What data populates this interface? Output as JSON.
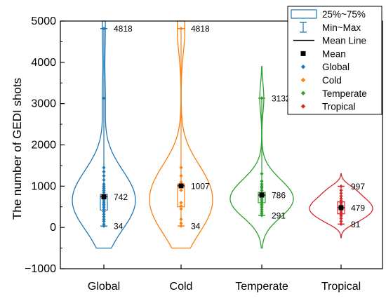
{
  "chart_data": {
    "type": "violin",
    "ylabel": "The number of GEDI shots",
    "xlabel": "",
    "ylim": [
      -1000,
      5000
    ],
    "yticks": [
      -1000,
      0,
      1000,
      2000,
      3000,
      4000,
      5000
    ],
    "categories": [
      "Global",
      "Cold",
      "Temperate",
      "Tropical"
    ],
    "series": [
      {
        "name": "Global",
        "color": "#1f77b4",
        "max": 4818,
        "mean": 742,
        "min": 34,
        "q1": 420,
        "q3": 800,
        "kde_range": [
          -500,
          5000
        ],
        "points": [
          34,
          80,
          150,
          200,
          260,
          320,
          380,
          430,
          480,
          520,
          560,
          600,
          640,
          680,
          720,
          760,
          800,
          850,
          900,
          950,
          1000,
          1050,
          1150,
          1250,
          1350,
          1450,
          3130,
          4818
        ]
      },
      {
        "name": "Cold",
        "color": "#ff7f0e",
        "max": 4818,
        "mean": 1007,
        "min": 34,
        "q1": 500,
        "q3": 1050,
        "kde_range": [
          -500,
          5000
        ],
        "points": [
          34,
          100,
          200,
          450,
          520,
          600,
          900,
          1000,
          1100,
          1250,
          1450,
          4818
        ]
      },
      {
        "name": "Temperate",
        "color": "#2ca02c",
        "max": 3132,
        "mean": 786,
        "min": 291,
        "q1": 600,
        "q3": 850,
        "kde_range": [
          -500,
          3900
        ],
        "points": [
          291,
          330,
          380,
          430,
          480,
          520,
          560,
          600,
          640,
          680,
          720,
          760,
          800,
          840,
          900,
          960,
          1000,
          1050,
          1120,
          1300,
          3132
        ]
      },
      {
        "name": "Tropical",
        "color": "#d62728",
        "max": 997,
        "mean": 479,
        "min": 81,
        "q1": 330,
        "q3": 620,
        "kde_range": [
          -250,
          1300
        ],
        "points": [
          81,
          150,
          220,
          280,
          320,
          360,
          400,
          440,
          480,
          520,
          560,
          600,
          650,
          700,
          760,
          830,
          900,
          997
        ]
      }
    ],
    "annotations": [
      {
        "category": "Global",
        "stat": "max",
        "value": 4818,
        "text": "4818"
      },
      {
        "category": "Global",
        "stat": "mean",
        "value": 742,
        "text": "742"
      },
      {
        "category": "Global",
        "stat": "min",
        "value": 34,
        "text": "34"
      },
      {
        "category": "Cold",
        "stat": "max",
        "value": 4818,
        "text": "4818"
      },
      {
        "category": "Cold",
        "stat": "mean",
        "value": 1007,
        "text": "1007"
      },
      {
        "category": "Cold",
        "stat": "min",
        "value": 34,
        "text": "34"
      },
      {
        "category": "Temperate",
        "stat": "max",
        "value": 3132,
        "text": "3132"
      },
      {
        "category": "Temperate",
        "stat": "mean",
        "value": 786,
        "text": "786"
      },
      {
        "category": "Temperate",
        "stat": "min",
        "value": 291,
        "text": "291"
      },
      {
        "category": "Tropical",
        "stat": "max",
        "value": 997,
        "text": "997"
      },
      {
        "category": "Tropical",
        "stat": "mean",
        "value": 479,
        "text": "479"
      },
      {
        "category": "Tropical",
        "stat": "min",
        "value": 81,
        "text": "81"
      }
    ],
    "legend": {
      "position": "top-right",
      "items": [
        {
          "label": "25%~75%",
          "symbol": "box",
          "color": "#1f77b4"
        },
        {
          "label": "Min~Max",
          "symbol": "whisker",
          "color": "#1f77b4"
        },
        {
          "label": "Mean Line",
          "symbol": "line",
          "color": "#000000"
        },
        {
          "label": "Mean",
          "symbol": "square",
          "color": "#000000"
        },
        {
          "label": "Global",
          "symbol": "diamond",
          "color": "#1f77b4"
        },
        {
          "label": "Cold",
          "symbol": "diamond",
          "color": "#ff7f0e"
        },
        {
          "label": "Temperate",
          "symbol": "diamond",
          "color": "#2ca02c"
        },
        {
          "label": "Tropical",
          "symbol": "diamond",
          "color": "#d62728"
        }
      ]
    },
    "grid": false
  }
}
